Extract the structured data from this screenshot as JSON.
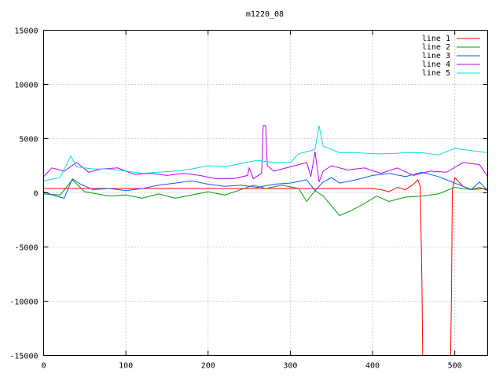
{
  "chart_data": {
    "type": "line",
    "title": "m1220_08",
    "xlim": [
      0,
      540
    ],
    "ylim": [
      -15000,
      15000
    ],
    "x_ticks": [
      0,
      100,
      200,
      300,
      400,
      500
    ],
    "y_ticks": [
      -15000,
      -10000,
      -5000,
      0,
      5000,
      10000,
      15000
    ],
    "grid": true,
    "legend_position": "top-right",
    "series": [
      {
        "name": "line 1",
        "color": "#ff0000",
        "points": [
          [
            0,
            400
          ],
          [
            100,
            400
          ],
          [
            200,
            400
          ],
          [
            300,
            400
          ],
          [
            400,
            400
          ],
          [
            410,
            300
          ],
          [
            420,
            100
          ],
          [
            430,
            500
          ],
          [
            440,
            300
          ],
          [
            450,
            800
          ],
          [
            455,
            1200
          ],
          [
            458,
            600
          ],
          [
            460,
            -8000
          ],
          [
            461,
            -15000
          ],
          [
            462,
            -15000
          ],
          [
            495,
            -15000
          ],
          [
            496,
            -9000
          ],
          [
            497,
            200
          ],
          [
            500,
            1400
          ],
          [
            510,
            600
          ],
          [
            520,
            300
          ],
          [
            530,
            500
          ],
          [
            540,
            200
          ]
        ]
      },
      {
        "name": "line 2",
        "color": "#00a000",
        "points": [
          [
            0,
            -100
          ],
          [
            20,
            -200
          ],
          [
            35,
            1200
          ],
          [
            50,
            100
          ],
          [
            80,
            -300
          ],
          [
            100,
            -200
          ],
          [
            120,
            -500
          ],
          [
            140,
            -100
          ],
          [
            160,
            -500
          ],
          [
            180,
            -200
          ],
          [
            200,
            100
          ],
          [
            220,
            -200
          ],
          [
            240,
            300
          ],
          [
            255,
            700
          ],
          [
            270,
            400
          ],
          [
            290,
            700
          ],
          [
            310,
            400
          ],
          [
            320,
            -800
          ],
          [
            330,
            200
          ],
          [
            340,
            -300
          ],
          [
            350,
            -1200
          ],
          [
            360,
            -2100
          ],
          [
            375,
            -1600
          ],
          [
            390,
            -1000
          ],
          [
            405,
            -300
          ],
          [
            420,
            -800
          ],
          [
            440,
            -400
          ],
          [
            460,
            -300
          ],
          [
            480,
            -100
          ],
          [
            500,
            500
          ],
          [
            520,
            300
          ],
          [
            540,
            400
          ]
        ]
      },
      {
        "name": "line 3",
        "color": "#0060ff",
        "points": [
          [
            0,
            100
          ],
          [
            15,
            -300
          ],
          [
            25,
            -500
          ],
          [
            35,
            1300
          ],
          [
            45,
            800
          ],
          [
            60,
            300
          ],
          [
            80,
            400
          ],
          [
            100,
            200
          ],
          [
            120,
            400
          ],
          [
            140,
            700
          ],
          [
            160,
            900
          ],
          [
            180,
            1100
          ],
          [
            200,
            800
          ],
          [
            220,
            600
          ],
          [
            240,
            700
          ],
          [
            260,
            500
          ],
          [
            280,
            800
          ],
          [
            300,
            900
          ],
          [
            320,
            1200
          ],
          [
            330,
            200
          ],
          [
            340,
            1000
          ],
          [
            350,
            1400
          ],
          [
            360,
            900
          ],
          [
            380,
            1200
          ],
          [
            400,
            1600
          ],
          [
            420,
            1800
          ],
          [
            440,
            1500
          ],
          [
            460,
            1900
          ],
          [
            480,
            1500
          ],
          [
            500,
            900
          ],
          [
            510,
            600
          ],
          [
            520,
            300
          ],
          [
            530,
            1000
          ],
          [
            540,
            200
          ]
        ]
      },
      {
        "name": "line 4",
        "color": "#c000ff",
        "points": [
          [
            0,
            1500
          ],
          [
            10,
            2300
          ],
          [
            25,
            2000
          ],
          [
            40,
            2800
          ],
          [
            55,
            1900
          ],
          [
            70,
            2200
          ],
          [
            90,
            2300
          ],
          [
            110,
            1700
          ],
          [
            130,
            1800
          ],
          [
            150,
            1600
          ],
          [
            170,
            1800
          ],
          [
            190,
            1600
          ],
          [
            210,
            1300
          ],
          [
            230,
            1300
          ],
          [
            248,
            1600
          ],
          [
            250,
            2300
          ],
          [
            255,
            1300
          ],
          [
            265,
            1800
          ],
          [
            267,
            6200
          ],
          [
            270,
            6200
          ],
          [
            272,
            2500
          ],
          [
            280,
            2000
          ],
          [
            300,
            2400
          ],
          [
            320,
            2800
          ],
          [
            325,
            1500
          ],
          [
            330,
            3800
          ],
          [
            335,
            1000
          ],
          [
            340,
            2000
          ],
          [
            350,
            2500
          ],
          [
            370,
            2100
          ],
          [
            390,
            2300
          ],
          [
            410,
            1800
          ],
          [
            430,
            2300
          ],
          [
            450,
            1600
          ],
          [
            470,
            2000
          ],
          [
            490,
            1900
          ],
          [
            510,
            2800
          ],
          [
            520,
            2700
          ],
          [
            530,
            2600
          ],
          [
            540,
            1500
          ]
        ]
      },
      {
        "name": "line 5",
        "color": "#00e0e0",
        "points": [
          [
            0,
            1100
          ],
          [
            20,
            1400
          ],
          [
            33,
            3400
          ],
          [
            40,
            2400
          ],
          [
            60,
            2200
          ],
          [
            80,
            2200
          ],
          [
            100,
            2000
          ],
          [
            120,
            1800
          ],
          [
            140,
            1900
          ],
          [
            160,
            2000
          ],
          [
            180,
            2200
          ],
          [
            200,
            2500
          ],
          [
            220,
            2400
          ],
          [
            240,
            2700
          ],
          [
            260,
            3000
          ],
          [
            280,
            2800
          ],
          [
            300,
            2800
          ],
          [
            310,
            3600
          ],
          [
            320,
            3800
          ],
          [
            330,
            4000
          ],
          [
            335,
            6200
          ],
          [
            340,
            4300
          ],
          [
            360,
            3700
          ],
          [
            380,
            3700
          ],
          [
            400,
            3600
          ],
          [
            420,
            3600
          ],
          [
            440,
            3700
          ],
          [
            460,
            3700
          ],
          [
            480,
            3500
          ],
          [
            500,
            4100
          ],
          [
            520,
            3900
          ],
          [
            540,
            3700
          ]
        ]
      }
    ]
  }
}
